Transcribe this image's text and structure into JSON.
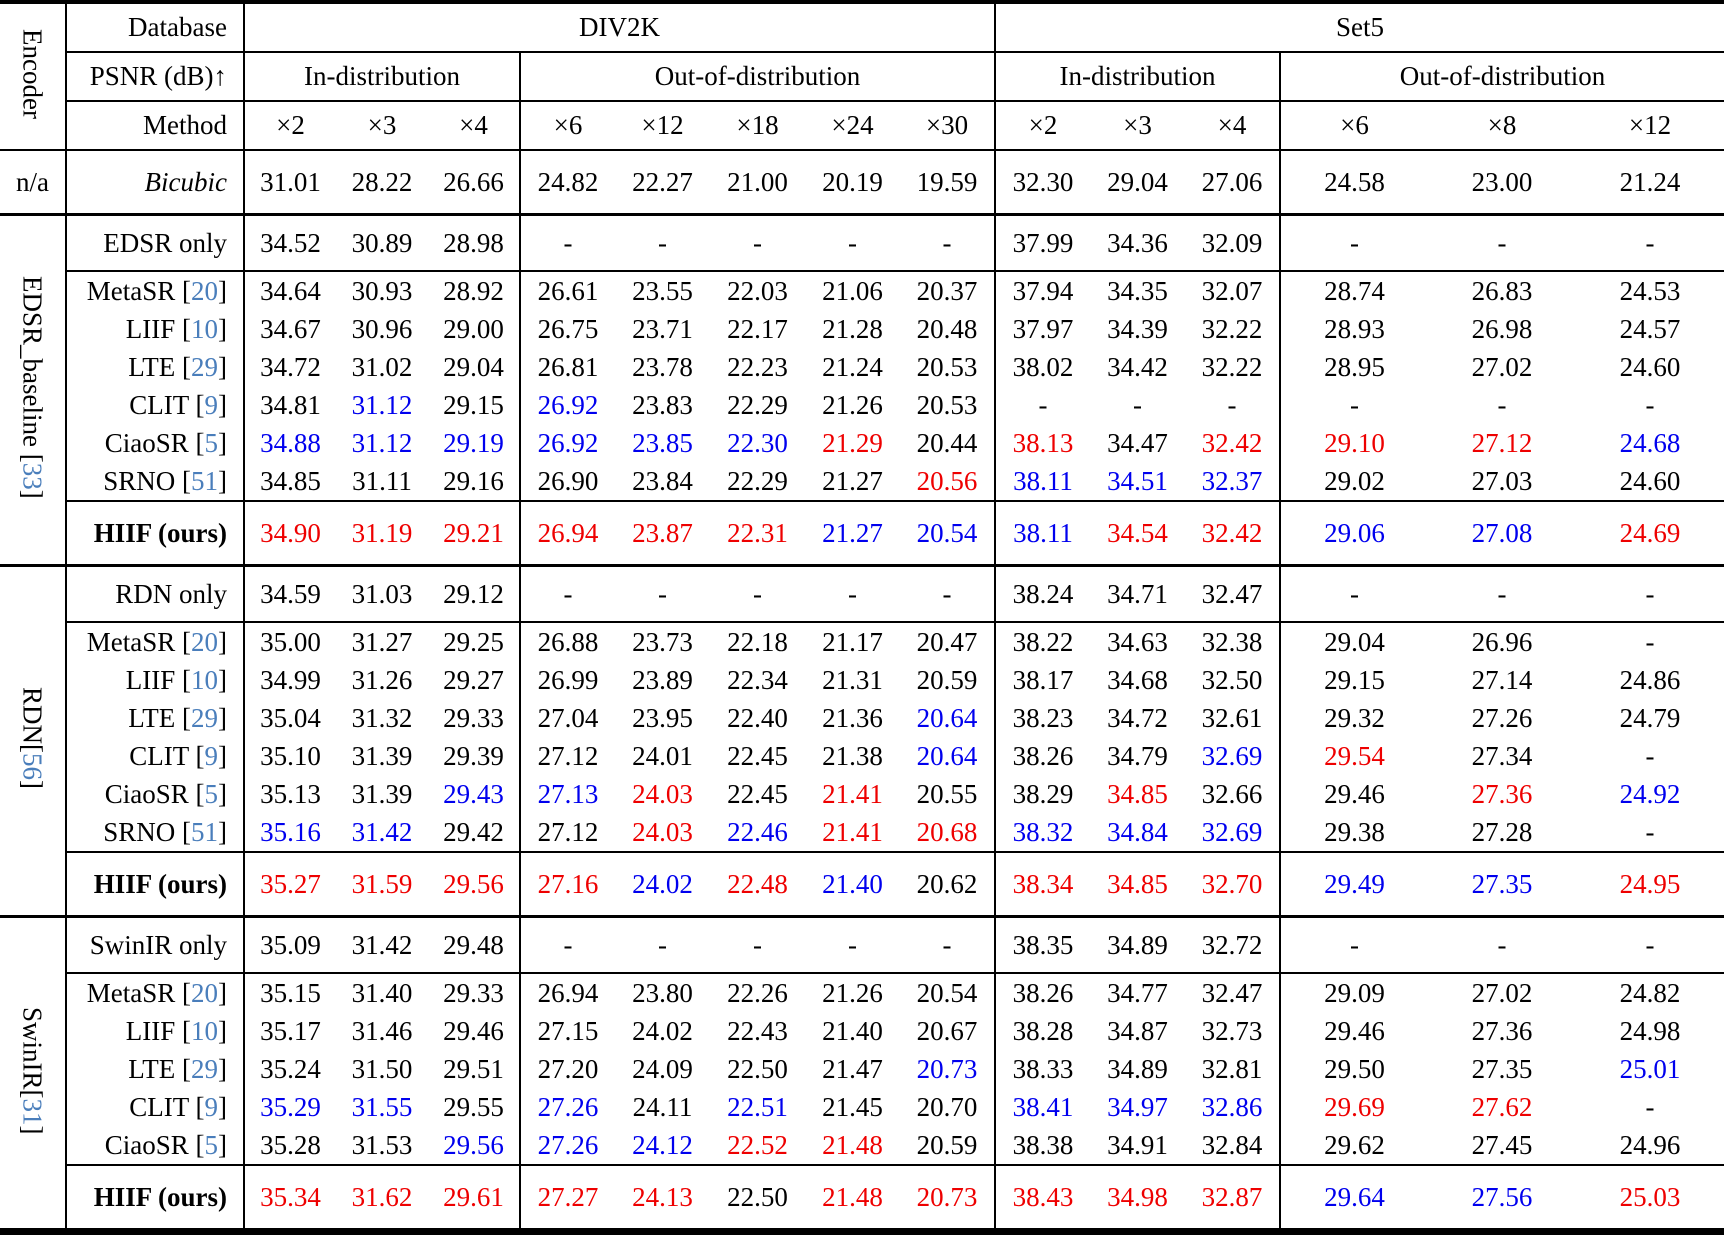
{
  "header": {
    "encoder_label": "Encoder",
    "database_label": "Database",
    "psnr_label": "PSNR (dB)↑",
    "method_label": "Method",
    "datasets": [
      "DIV2K",
      "Set5"
    ],
    "distribution_headers": [
      "In-distribution",
      "Out-of-distribution",
      "In-distribution",
      "Out-of-distribution"
    ],
    "scales": [
      "×2",
      "×3",
      "×4",
      "×6",
      "×12",
      "×18",
      "×24",
      "×30",
      "×2",
      "×3",
      "×4",
      "×6",
      "×8",
      "×12"
    ]
  },
  "colors": {
    "best": "#ee0000",
    "second_best": "#0000ee",
    "citation": "#4a7ebb",
    "text": "#000000"
  },
  "value_color_legend": {
    "r": "best (red)",
    "b": "second best (blue)",
    "plain": "black"
  },
  "groups": [
    {
      "encoder_label": "n/a",
      "encoder_cite": null,
      "rotated": false,
      "baseline_row": null,
      "method_rows": [
        {
          "method": "Bicubic",
          "cite": null,
          "italic": true,
          "values": [
            "31.01",
            "28.22",
            "26.66",
            "24.82",
            "22.27",
            "21.00",
            "20.19",
            "19.59",
            "32.30",
            "29.04",
            "27.06",
            "24.58",
            "23.00",
            "21.24"
          ]
        }
      ],
      "ours_row": null
    },
    {
      "encoder_label": "EDSR_baseline ",
      "encoder_cite": "33",
      "rotated": true,
      "baseline_row": {
        "method": "EDSR only",
        "cite": null,
        "values": [
          "34.52",
          "30.89",
          "28.98",
          "-",
          "-",
          "-",
          "-",
          "-",
          "37.99",
          "34.36",
          "32.09",
          "-",
          "-",
          "-"
        ]
      },
      "method_rows": [
        {
          "method": "MetaSR",
          "cite": "20",
          "values": [
            "34.64",
            "30.93",
            "28.92",
            "26.61",
            "23.55",
            "22.03",
            "21.06",
            "20.37",
            "37.94",
            "34.35",
            "32.07",
            "28.74",
            "26.83",
            "24.53"
          ]
        },
        {
          "method": "LIIF",
          "cite": "10",
          "values": [
            "34.67",
            "30.96",
            "29.00",
            "26.75",
            "23.71",
            "22.17",
            "21.28",
            "20.48",
            "37.97",
            "34.39",
            "32.22",
            "28.93",
            "26.98",
            "24.57"
          ]
        },
        {
          "method": "LTE",
          "cite": "29",
          "values": [
            "34.72",
            "31.02",
            "29.04",
            "26.81",
            "23.78",
            "22.23",
            "21.24",
            "20.53",
            "38.02",
            "34.42",
            "32.22",
            "28.95",
            "27.02",
            "24.60"
          ]
        },
        {
          "method": "CLIT",
          "cite": "9",
          "values": [
            "34.81",
            "b:31.12",
            "29.15",
            "b:26.92",
            "23.83",
            "22.29",
            "21.26",
            "20.53",
            "-",
            "-",
            "-",
            "-",
            "-",
            "-"
          ]
        },
        {
          "method": "CiaoSR",
          "cite": "5",
          "values": [
            "b:34.88",
            "b:31.12",
            "b:29.19",
            "b:26.92",
            "b:23.85",
            "b:22.30",
            "r:21.29",
            "20.44",
            "r:38.13",
            "34.47",
            "r:32.42",
            "r:29.10",
            "r:27.12",
            "b:24.68"
          ]
        },
        {
          "method": "SRNO",
          "cite": "51",
          "values": [
            "34.85",
            "31.11",
            "29.16",
            "26.90",
            "23.84",
            "22.29",
            "21.27",
            "r:20.56",
            "b:38.11",
            "b:34.51",
            "b:32.37",
            "29.02",
            "27.03",
            "24.60"
          ]
        }
      ],
      "ours_row": {
        "method": "HIIF (ours)",
        "cite": null,
        "values": [
          "r:34.90",
          "r:31.19",
          "r:29.21",
          "r:26.94",
          "r:23.87",
          "r:22.31",
          "b:21.27",
          "b:20.54",
          "b:38.11",
          "r:34.54",
          "r:32.42",
          "b:29.06",
          "b:27.08",
          "r:24.69"
        ]
      }
    },
    {
      "encoder_label": "RDN",
      "encoder_cite": "56",
      "rotated": true,
      "baseline_row": {
        "method": "RDN only",
        "cite": null,
        "values": [
          "34.59",
          "31.03",
          "29.12",
          "-",
          "-",
          "-",
          "-",
          "-",
          "38.24",
          "34.71",
          "32.47",
          "-",
          "-",
          "-"
        ]
      },
      "method_rows": [
        {
          "method": "MetaSR",
          "cite": "20",
          "values": [
            "35.00",
            "31.27",
            "29.25",
            "26.88",
            "23.73",
            "22.18",
            "21.17",
            "20.47",
            "38.22",
            "34.63",
            "32.38",
            "29.04",
            "26.96",
            "-"
          ]
        },
        {
          "method": "LIIF",
          "cite": "10",
          "values": [
            "34.99",
            "31.26",
            "29.27",
            "26.99",
            "23.89",
            "22.34",
            "21.31",
            "20.59",
            "38.17",
            "34.68",
            "32.50",
            "29.15",
            "27.14",
            "24.86"
          ]
        },
        {
          "method": "LTE",
          "cite": "29",
          "values": [
            "35.04",
            "31.32",
            "29.33",
            "27.04",
            "23.95",
            "22.40",
            "21.36",
            "b:20.64",
            "38.23",
            "34.72",
            "32.61",
            "29.32",
            "27.26",
            "24.79"
          ]
        },
        {
          "method": "CLIT",
          "cite": "9",
          "values": [
            "35.10",
            "31.39",
            "29.39",
            "27.12",
            "24.01",
            "22.45",
            "21.38",
            "b:20.64",
            "38.26",
            "34.79",
            "b:32.69",
            "r:29.54",
            "27.34",
            "-"
          ]
        },
        {
          "method": "CiaoSR",
          "cite": "5",
          "values": [
            "35.13",
            "31.39",
            "b:29.43",
            "b:27.13",
            "r:24.03",
            "22.45",
            "r:21.41",
            "20.55",
            "38.29",
            "r:34.85",
            "32.66",
            "29.46",
            "r:27.36",
            "b:24.92"
          ]
        },
        {
          "method": "SRNO",
          "cite": "51",
          "values": [
            "b:35.16",
            "b:31.42",
            "29.42",
            "27.12",
            "r:24.03",
            "b:22.46",
            "r:21.41",
            "r:20.68",
            "b:38.32",
            "b:34.84",
            "b:32.69",
            "29.38",
            "27.28",
            "-"
          ]
        }
      ],
      "ours_row": {
        "method": "HIIF (ours)",
        "cite": null,
        "values": [
          "r:35.27",
          "r:31.59",
          "r:29.56",
          "r:27.16",
          "b:24.02",
          "r:22.48",
          "b:21.40",
          "20.62",
          "r:38.34",
          "r:34.85",
          "r:32.70",
          "b:29.49",
          "b:27.35",
          "r:24.95"
        ]
      }
    },
    {
      "encoder_label": "SwinIR",
      "encoder_cite": "31",
      "rotated": true,
      "baseline_row": {
        "method": "SwinIR only",
        "cite": null,
        "values": [
          "35.09",
          "31.42",
          "29.48",
          "-",
          "-",
          "-",
          "-",
          "-",
          "38.35",
          "34.89",
          "32.72",
          "-",
          "-",
          "-"
        ]
      },
      "method_rows": [
        {
          "method": "MetaSR",
          "cite": "20",
          "values": [
            "35.15",
            "31.40",
            "29.33",
            "26.94",
            "23.80",
            "22.26",
            "21.26",
            "20.54",
            "38.26",
            "34.77",
            "32.47",
            "29.09",
            "27.02",
            "24.82"
          ]
        },
        {
          "method": "LIIF",
          "cite": "10",
          "values": [
            "35.17",
            "31.46",
            "29.46",
            "27.15",
            "24.02",
            "22.43",
            "21.40",
            "20.67",
            "38.28",
            "34.87",
            "32.73",
            "29.46",
            "27.36",
            "24.98"
          ]
        },
        {
          "method": "LTE",
          "cite": "29",
          "values": [
            "35.24",
            "31.50",
            "29.51",
            "27.20",
            "24.09",
            "22.50",
            "21.47",
            "b:20.73",
            "38.33",
            "34.89",
            "32.81",
            "29.50",
            "27.35",
            "b:25.01"
          ]
        },
        {
          "method": "CLIT",
          "cite": "9",
          "values": [
            "b:35.29",
            "b:31.55",
            "29.55",
            "b:27.26",
            "24.11",
            "b:22.51",
            "21.45",
            "20.70",
            "b:38.41",
            "b:34.97",
            "b:32.86",
            "r:29.69",
            "r:27.62",
            "-"
          ]
        },
        {
          "method": "CiaoSR",
          "cite": "5",
          "values": [
            "35.28",
            "31.53",
            "b:29.56",
            "b:27.26",
            "b:24.12",
            "r:22.52",
            "r:21.48",
            "20.59",
            "38.38",
            "34.91",
            "32.84",
            "29.62",
            "27.45",
            "24.96"
          ]
        }
      ],
      "ours_row": {
        "method": "HIIF (ours)",
        "cite": null,
        "values": [
          "r:35.34",
          "r:31.62",
          "r:29.61",
          "r:27.27",
          "r:24.13",
          "22.50",
          "r:21.48",
          "r:20.73",
          "r:38.43",
          "r:34.98",
          "r:32.87",
          "b:29.64",
          "b:27.56",
          "r:25.03"
        ]
      }
    }
  ]
}
